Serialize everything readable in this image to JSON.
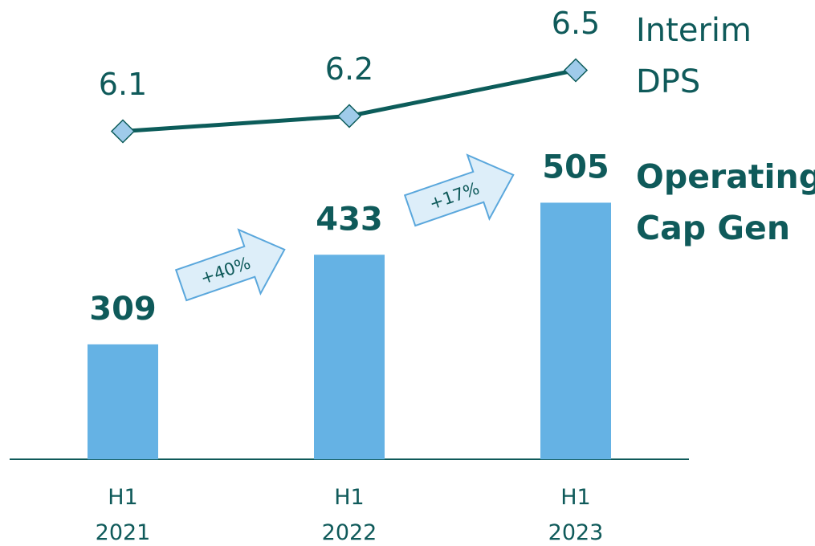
{
  "chart_data": {
    "type": "bar",
    "categories": [
      "H1 2021",
      "H1 2022",
      "H1 2023"
    ],
    "series": [
      {
        "name": "Operating Cap Gen",
        "type": "bar",
        "color": "#65b2e4",
        "values": [
          309,
          433,
          505
        ]
      },
      {
        "name": "Interim DPS",
        "type": "line",
        "axis": "y2",
        "color": "#0c5c5a",
        "marker_color": "#9fcbea",
        "values": [
          6.1,
          6.2,
          6.5
        ]
      }
    ],
    "ylim": [
      150,
      741
    ],
    "y2lim": [
      3.95,
      6.75
    ],
    "annotations": [
      {
        "text": "+40%"
      },
      {
        "text": "+17%"
      }
    ]
  }
}
